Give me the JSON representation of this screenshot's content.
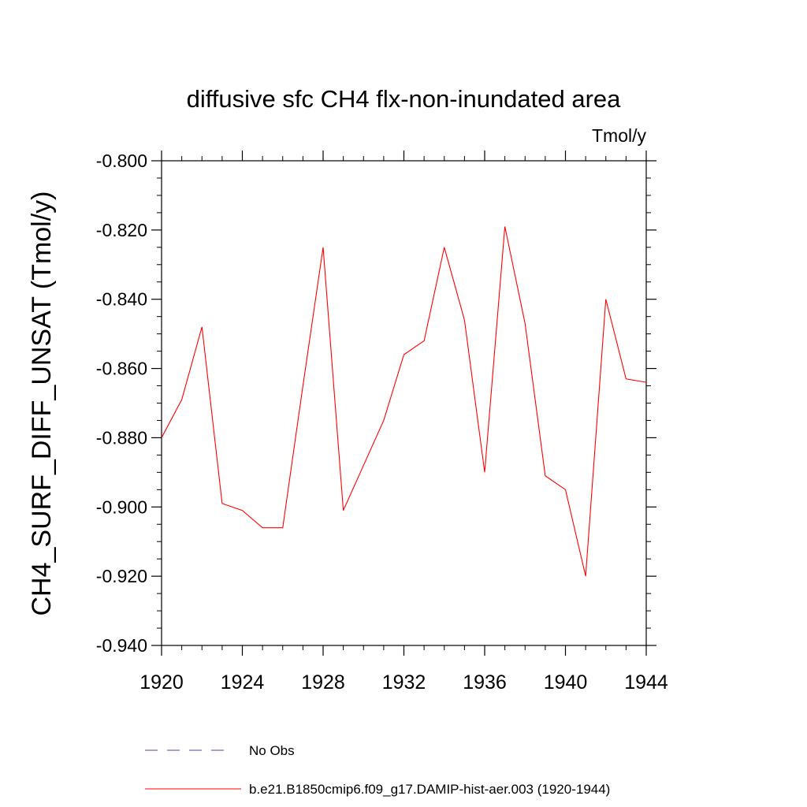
{
  "chart_data": {
    "type": "line",
    "title": "diffusive sfc CH4 flx-non-inundated area",
    "units": "Tmol/y",
    "ylabel": "CH4_SURF_DIFF_UNSAT  (Tmol/y)",
    "xlabel": "",
    "xlim": [
      1920,
      1944
    ],
    "ylim": [
      -0.94,
      -0.8
    ],
    "x_ticks": [
      1920,
      1924,
      1928,
      1932,
      1936,
      1940,
      1944
    ],
    "x_tick_labels": [
      "1920",
      "1924",
      "1928",
      "1932",
      "1936",
      "1940",
      "1944"
    ],
    "y_ticks": [
      -0.8,
      -0.82,
      -0.84,
      -0.86,
      -0.88,
      -0.9,
      -0.92,
      -0.94
    ],
    "y_tick_labels": [
      "-0.800",
      "-0.820",
      "-0.840",
      "-0.860",
      "-0.880",
      "-0.900",
      "-0.920",
      "-0.940"
    ],
    "grid": false,
    "legend_position": "bottom",
    "series": [
      {
        "name": "No Obs",
        "style": "dashed",
        "color": "#4a4ab0",
        "x": [],
        "values": []
      },
      {
        "name": "b.e21.B1850cmip6.f09_g17.DAMIP-hist-aer.003 (1920-1944)",
        "style": "solid",
        "color": "#ff0000",
        "x": [
          1920,
          1921,
          1922,
          1923,
          1924,
          1925,
          1926,
          1927,
          1928,
          1929,
          1930,
          1931,
          1932,
          1933,
          1934,
          1935,
          1936,
          1937,
          1938,
          1939,
          1940,
          1941,
          1942,
          1943,
          1944
        ],
        "values": [
          -0.88,
          -0.869,
          -0.848,
          -0.899,
          -0.901,
          -0.906,
          -0.906,
          -0.865,
          -0.825,
          -0.901,
          -0.888,
          -0.875,
          -0.856,
          -0.852,
          -0.825,
          -0.846,
          -0.89,
          -0.819,
          -0.847,
          -0.891,
          -0.895,
          -0.92,
          -0.84,
          -0.863,
          -0.864
        ]
      }
    ]
  }
}
